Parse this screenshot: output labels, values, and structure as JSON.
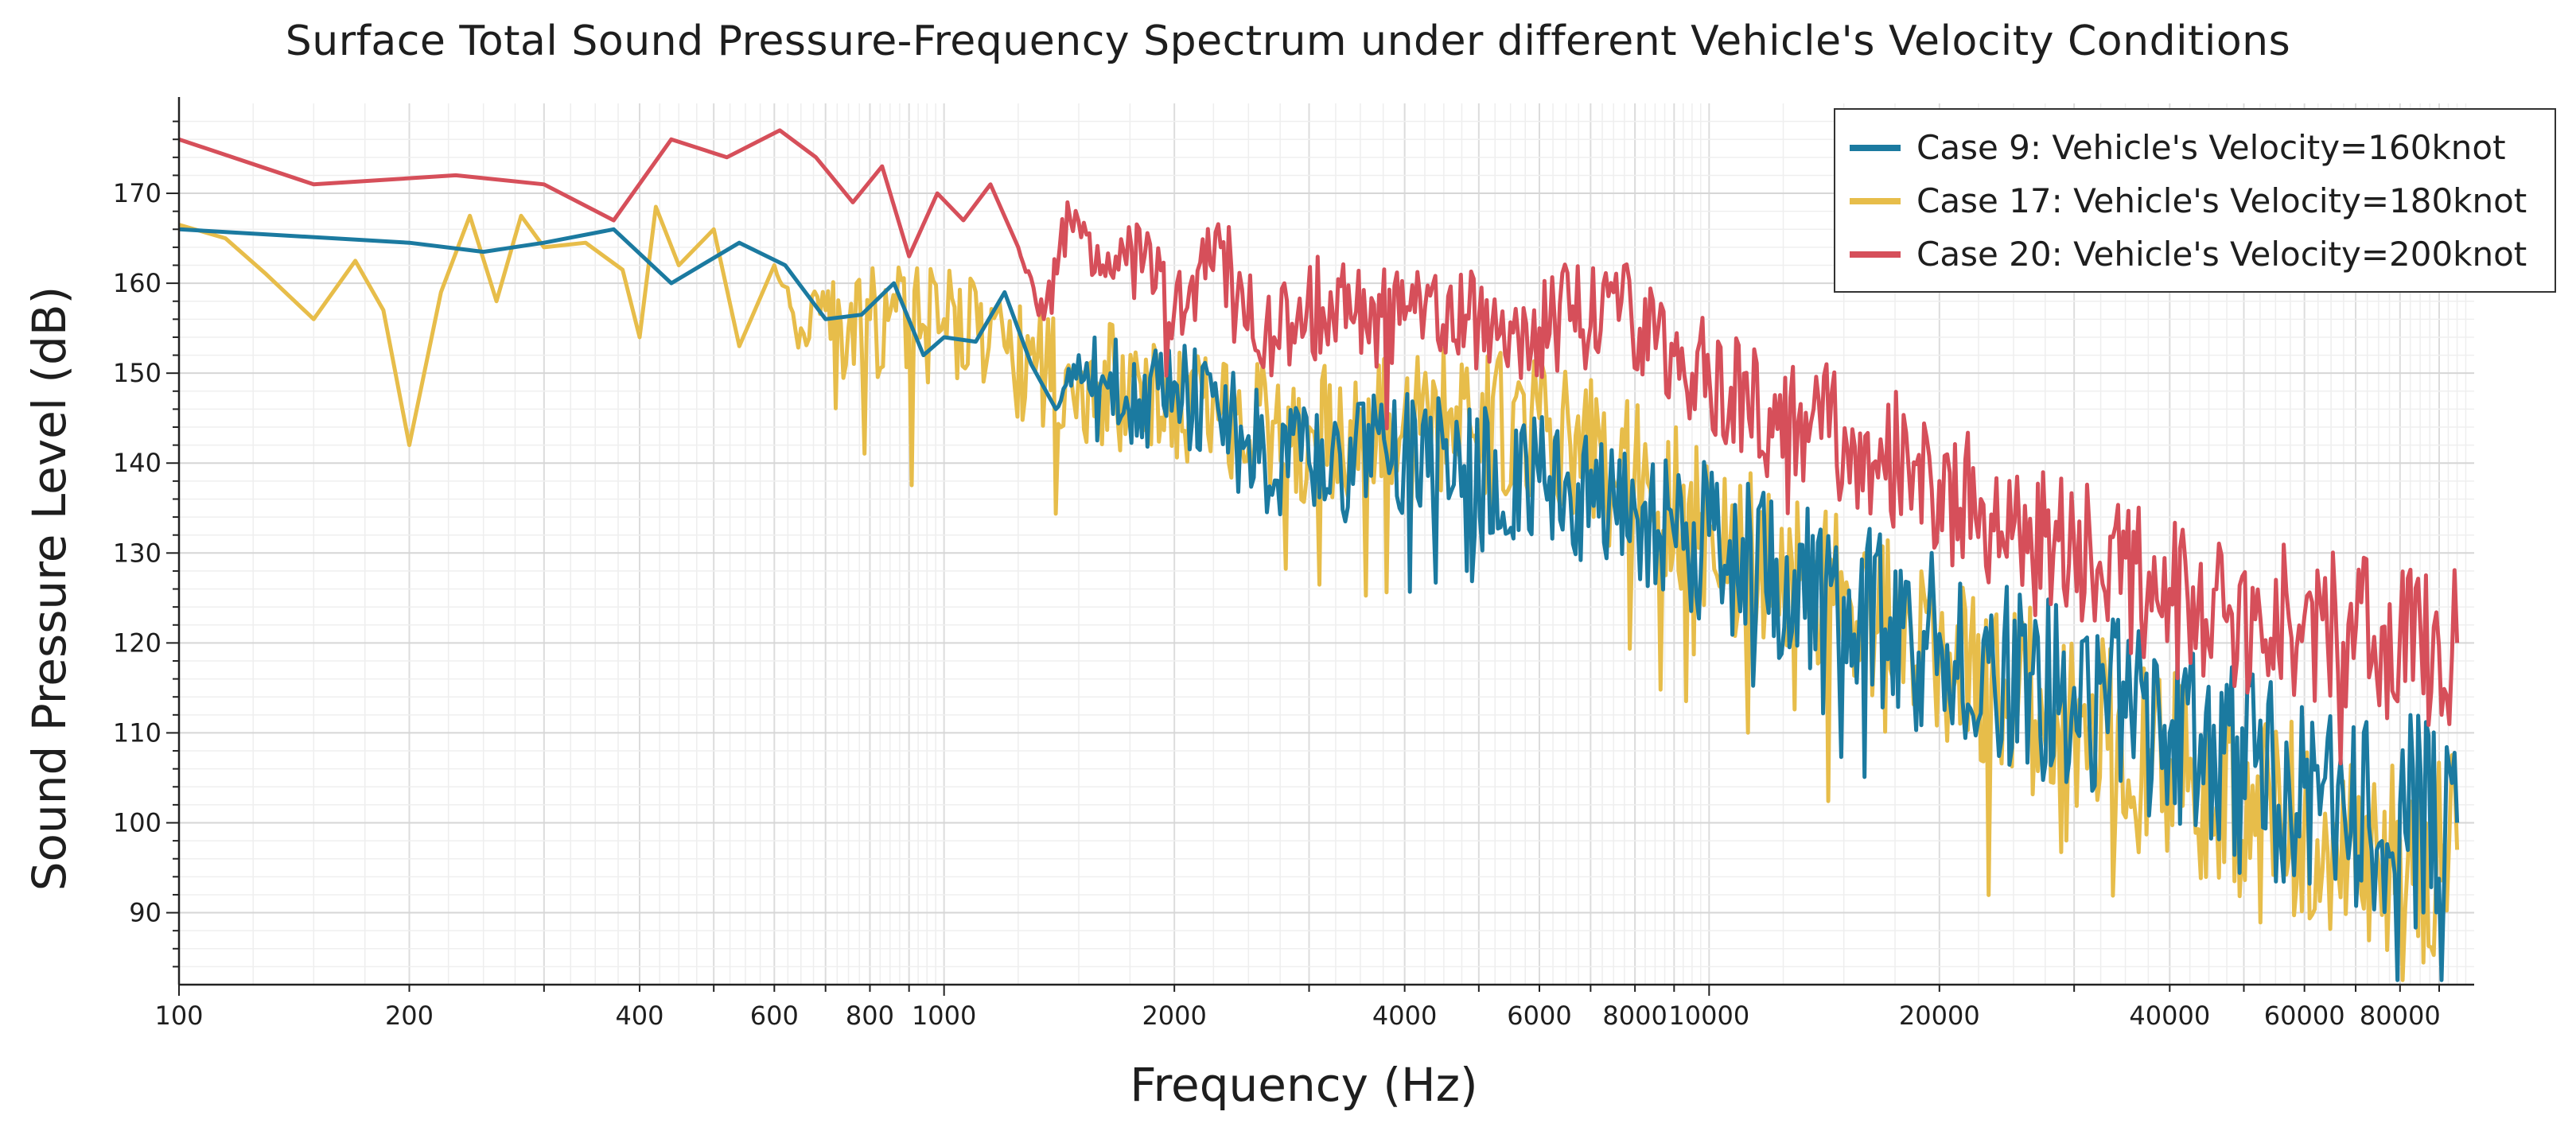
{
  "chart_data": {
    "type": "line",
    "title": "Surface Total Sound Pressure-Frequency Spectrum under different Vehicle's Velocity Conditions",
    "xlabel": "Frequency (Hz)",
    "ylabel": "Sound Pressure Level (dB)",
    "xscale": "log",
    "xlim": [
      100,
      100000
    ],
    "ylim": [
      82,
      180
    ],
    "grid": true,
    "legend_position": "top-right",
    "x_ticks": [
      100,
      200,
      400,
      600,
      800,
      1000,
      2000,
      4000,
      6000,
      8000,
      10000,
      20000,
      40000,
      60000,
      80000
    ],
    "x_tick_labels": [
      "100",
      "200",
      "400",
      "600",
      "800",
      "1000",
      "2000",
      "4000",
      "6000",
      "8000",
      "10000",
      "20000",
      "40000",
      "60000",
      "80000"
    ],
    "y_ticks": [
      90,
      100,
      110,
      120,
      130,
      140,
      150,
      160,
      170
    ],
    "y_tick_labels": [
      "90",
      "100",
      "110",
      "120",
      "130",
      "140",
      "150",
      "160",
      "170"
    ],
    "series": [
      {
        "name": "Case 9: Vehicle's Velocity=160knot",
        "color": "#1b7aa0",
        "x": [
          100,
          200,
          250,
          300,
          370,
          440,
          540,
          620,
          700,
          780,
          860,
          940,
          1000,
          1100,
          1200,
          1300,
          1400,
          1500,
          1650,
          1800,
          2000,
          2500,
          3000,
          4000,
          6000,
          8000,
          10000,
          15000,
          20000,
          30000,
          40000,
          60000,
          80000,
          95000
        ],
        "values": [
          166,
          164.5,
          163.5,
          164.5,
          166,
          160,
          164.5,
          162,
          156,
          156.5,
          160,
          152,
          154,
          153.5,
          159,
          151,
          146,
          152,
          150,
          147,
          149,
          143,
          140,
          142,
          138,
          135,
          132,
          125,
          121,
          115,
          110,
          104,
          102,
          100
        ],
        "spread": [
          0,
          0,
          0,
          0,
          0,
          0,
          0,
          0,
          0,
          0,
          0,
          0,
          0,
          0,
          0,
          0,
          0,
          3,
          5,
          6,
          6,
          7,
          7,
          7,
          8,
          8,
          9,
          10,
          10,
          11,
          11,
          12,
          12,
          12
        ]
      },
      {
        "name": "Case 17: Vehicle's Velocity=180knot",
        "color": "#e7bd4a",
        "x": [
          100,
          115,
          130,
          150,
          170,
          185,
          200,
          220,
          240,
          260,
          280,
          300,
          340,
          380,
          400,
          420,
          450,
          500,
          540,
          600,
          650,
          700,
          750,
          800,
          900,
          1000,
          1200,
          1500,
          2000,
          3000,
          4000,
          6000,
          8000,
          10000,
          15000,
          20000,
          30000,
          40000,
          60000,
          80000,
          95000
        ],
        "values": [
          166.5,
          165,
          161,
          156,
          162.5,
          157,
          142,
          159,
          167.5,
          158,
          167.5,
          164,
          164.5,
          161.5,
          154,
          168.5,
          162,
          166,
          153,
          162,
          155,
          157,
          155,
          156,
          156,
          156,
          153,
          150,
          148,
          144,
          146,
          145,
          140,
          133,
          125,
          120,
          112,
          107,
          101,
          98,
          97
        ],
        "spread": [
          0,
          0,
          0,
          0,
          0,
          0,
          0,
          0,
          0,
          0,
          0,
          0,
          0,
          0,
          0,
          0,
          0,
          0,
          0,
          0,
          3,
          4,
          6,
          7,
          7,
          7,
          7,
          7,
          7,
          8,
          8,
          8,
          9,
          9,
          10,
          10,
          11,
          11,
          11,
          12,
          12
        ]
      },
      {
        "name": "Case 20: Vehicle's Velocity=200knot",
        "color": "#d64f5a",
        "x": [
          100,
          150,
          230,
          300,
          370,
          440,
          520,
          610,
          680,
          760,
          830,
          900,
          980,
          1060,
          1150,
          1250,
          1350,
          1450,
          1600,
          1800,
          2000,
          2300,
          2700,
          3200,
          4000,
          5000,
          6000,
          7500,
          9000,
          12000,
          16000,
          20000,
          30000,
          40000,
          60000,
          80000,
          95000
        ],
        "values": [
          176,
          171,
          172,
          171,
          167,
          176,
          174,
          177,
          174,
          169,
          173,
          163,
          170,
          167,
          171,
          164,
          156,
          169,
          161,
          166,
          157,
          164,
          154,
          159,
          156,
          156,
          155,
          159,
          152,
          146,
          143,
          138,
          131,
          126,
          123,
          121,
          120
        ],
        "spread": [
          0,
          0,
          0,
          0,
          0,
          0,
          0,
          0,
          0,
          0,
          0,
          0,
          0,
          0,
          0,
          0,
          2,
          2,
          3,
          3,
          4,
          5,
          6,
          6,
          6,
          6,
          6,
          7,
          7,
          7,
          8,
          8,
          8,
          9,
          9,
          9,
          9
        ]
      }
    ]
  }
}
